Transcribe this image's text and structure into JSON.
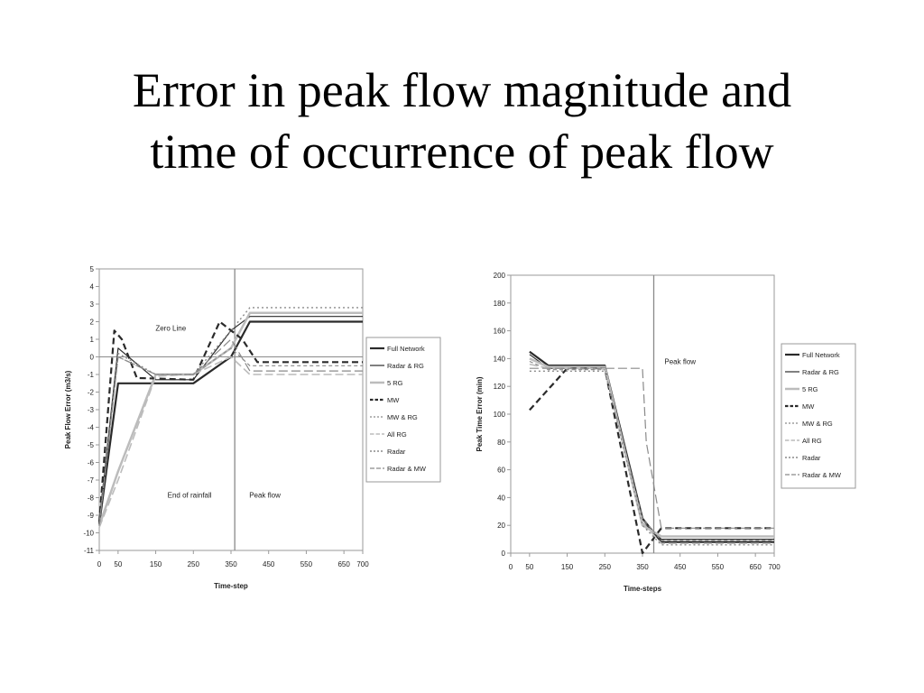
{
  "slide": {
    "title_line1": "Error in peak flow magnitude and",
    "title_line2": "time of occurrence of peak flow"
  },
  "colors": {
    "line": "#2a2a2a",
    "light": "#bcbcbc",
    "mid": "#8a8a8a",
    "frame": "#9a9a9a"
  },
  "chart_data": [
    {
      "type": "line",
      "title": "",
      "xlabel": "Time-step",
      "ylabel": "Peak Flow Error (m3/s)",
      "xlim": [
        0,
        700
      ],
      "ylim": [
        -11,
        5
      ],
      "x_ticks": [
        0,
        50,
        150,
        250,
        350,
        450,
        550,
        650,
        700
      ],
      "y_ticks": [
        5,
        4,
        3,
        2,
        1,
        0,
        -1,
        -2,
        -3,
        -4,
        -5,
        -6,
        -7,
        -8,
        -9,
        -10,
        -11
      ],
      "vline_x": 360,
      "annotations": [
        {
          "text": "Zero Line",
          "x": 190,
          "y": 1.5
        },
        {
          "text": "End of rainfall",
          "x": 240,
          "y": -8.0
        },
        {
          "text": "Peak flow",
          "x": 440,
          "y": -8.0
        }
      ],
      "legend_position": "right",
      "series": [
        {
          "name": "Full Network",
          "x": [
            0,
            50,
            150,
            250,
            350,
            400,
            700
          ],
          "y": [
            -9.5,
            -1.5,
            -1.5,
            -1.5,
            0.0,
            2.0,
            2.0
          ]
        },
        {
          "name": "Radar & RG",
          "x": [
            0,
            50,
            150,
            250,
            350,
            400,
            700
          ],
          "y": [
            -9.3,
            0.5,
            -1.3,
            -1.3,
            1.5,
            2.3,
            2.3
          ]
        },
        {
          "name": "5 RG",
          "x": [
            0,
            50,
            150,
            250,
            350,
            400,
            700
          ],
          "y": [
            -9.6,
            -6.5,
            -1.0,
            -1.0,
            0.5,
            2.5,
            2.5
          ]
        },
        {
          "name": "MW",
          "x": [
            0,
            40,
            60,
            100,
            250,
            320,
            380,
            420,
            700
          ],
          "y": [
            -9.4,
            1.5,
            1.0,
            -1.2,
            -1.3,
            2.0,
            1.0,
            -0.3,
            -0.3
          ]
        },
        {
          "name": "MW & RG",
          "x": [
            0,
            50,
            150,
            250,
            350,
            400,
            700
          ],
          "y": [
            -9.5,
            0.0,
            -1.0,
            -1.0,
            0.5,
            -0.5,
            -0.5
          ]
        },
        {
          "name": "All RG",
          "x": [
            0,
            50,
            150,
            250,
            350,
            400,
            700
          ],
          "y": [
            -9.7,
            -7.0,
            -1.1,
            -1.0,
            0.0,
            -1.0,
            -1.0
          ]
        },
        {
          "name": "Radar",
          "x": [
            0,
            50,
            150,
            250,
            350,
            400,
            700
          ],
          "y": [
            -9.5,
            0.2,
            -1.0,
            -1.0,
            1.5,
            2.8,
            2.8
          ]
        },
        {
          "name": "Radar & MW",
          "x": [
            0,
            50,
            150,
            250,
            350,
            400,
            700
          ],
          "y": [
            -9.6,
            0.0,
            -1.0,
            -1.0,
            1.0,
            -0.8,
            -0.8
          ]
        }
      ]
    },
    {
      "type": "line",
      "title": "",
      "xlabel": "Time-steps",
      "ylabel": "Peak Time Error (min)",
      "xlim": [
        0,
        700
      ],
      "ylim": [
        0,
        200
      ],
      "x_ticks": [
        0,
        50,
        150,
        250,
        350,
        450,
        550,
        650,
        700
      ],
      "y_ticks": [
        200,
        180,
        160,
        140,
        120,
        100,
        80,
        60,
        40,
        20,
        0
      ],
      "vline_x": 380,
      "annotations": [
        {
          "text": "Peak flow",
          "x": 450,
          "y": 136
        }
      ],
      "legend_position": "right",
      "series": [
        {
          "name": "Full Network",
          "x": [
            50,
            100,
            250,
            350,
            400,
            700
          ],
          "y": [
            145,
            135,
            135,
            25,
            8,
            8
          ]
        },
        {
          "name": "Radar & RG",
          "x": [
            50,
            100,
            250,
            350,
            400,
            700
          ],
          "y": [
            143,
            133,
            133,
            22,
            10,
            10
          ]
        },
        {
          "name": "5 RG",
          "x": [
            50,
            100,
            250,
            350,
            400,
            700
          ],
          "y": [
            140,
            134,
            134,
            20,
            12,
            12
          ]
        },
        {
          "name": "MW",
          "x": [
            50,
            150,
            250,
            350,
            400,
            700
          ],
          "y": [
            103,
            133,
            133,
            0,
            18,
            18
          ]
        },
        {
          "name": "MW & RG",
          "x": [
            50,
            100,
            250,
            350,
            400,
            700
          ],
          "y": [
            138,
            132,
            132,
            25,
            9,
            9
          ]
        },
        {
          "name": "All RG",
          "x": [
            50,
            100,
            250,
            350,
            400,
            700
          ],
          "y": [
            136,
            133,
            133,
            22,
            7,
            7
          ]
        },
        {
          "name": "Radar",
          "x": [
            50,
            100,
            250,
            350,
            400,
            700
          ],
          "y": [
            131,
            131,
            131,
            20,
            6,
            6
          ]
        },
        {
          "name": "Radar & MW",
          "x": [
            50,
            100,
            250,
            350,
            360,
            400,
            700
          ],
          "y": [
            133,
            133,
            133,
            133,
            80,
            18,
            18
          ]
        }
      ]
    }
  ]
}
